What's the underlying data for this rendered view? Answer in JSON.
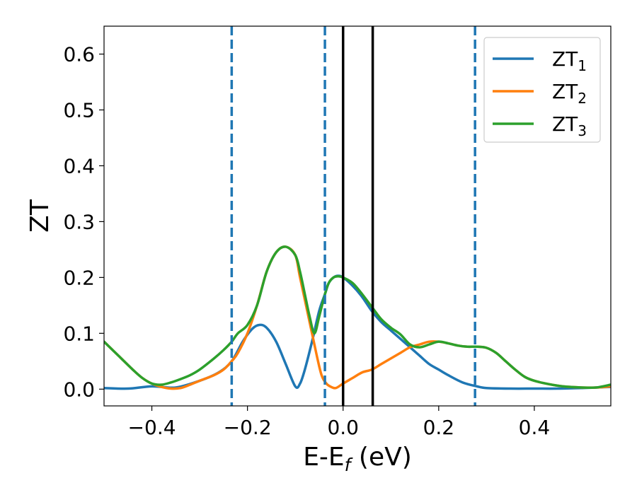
{
  "chart_data": {
    "type": "line",
    "xlabel": "E-E",
    "xlabel_sub": "f",
    "xlabel_unit": " (eV)",
    "ylabel": "ZT",
    "xlim": [
      -0.5,
      0.56
    ],
    "ylim": [
      -0.03,
      0.65
    ],
    "xticks": [
      -0.4,
      -0.2,
      0.0,
      0.2,
      0.4
    ],
    "xtick_labels": [
      "−0.4",
      "−0.2",
      "0.0",
      "0.2",
      "0.4"
    ],
    "yticks": [
      0.0,
      0.1,
      0.2,
      0.3,
      0.4,
      0.5,
      0.6
    ],
    "ytick_labels": [
      "0.0",
      "0.1",
      "0.2",
      "0.3",
      "0.4",
      "0.5",
      "0.6"
    ],
    "grid": false,
    "legend_position": "top-right",
    "vlines_solid": [
      0.0,
      0.062
    ],
    "vlines_solid_color": "#000000",
    "vlines_dashed": [
      -0.233,
      -0.038,
      0.276
    ],
    "vlines_dashed_color": "#1f77b4",
    "series": [
      {
        "name": "ZT",
        "sub": "1",
        "color": "#1f77b4",
        "x": [
          -0.5,
          -0.45,
          -0.4,
          -0.35,
          -0.3,
          -0.26,
          -0.233,
          -0.21,
          -0.19,
          -0.175,
          -0.16,
          -0.14,
          -0.12,
          -0.1,
          -0.09,
          -0.08,
          -0.065,
          -0.05,
          -0.038,
          -0.03,
          -0.02,
          -0.01,
          0.0,
          0.02,
          0.04,
          0.06,
          0.08,
          0.1,
          0.12,
          0.14,
          0.16,
          0.18,
          0.2,
          0.22,
          0.25,
          0.28,
          0.3,
          0.35,
          0.4,
          0.45,
          0.5,
          0.53,
          0.56
        ],
        "y": [
          0.002,
          0.001,
          0.005,
          0.003,
          0.015,
          0.03,
          0.05,
          0.085,
          0.108,
          0.115,
          0.11,
          0.085,
          0.045,
          0.005,
          0.01,
          0.035,
          0.085,
          0.14,
          0.17,
          0.19,
          0.2,
          0.203,
          0.2,
          0.185,
          0.165,
          0.14,
          0.12,
          0.105,
          0.09,
          0.075,
          0.06,
          0.045,
          0.035,
          0.025,
          0.012,
          0.005,
          0.002,
          0.001,
          0.001,
          0.001,
          0.002,
          0.003,
          0.004
        ]
      },
      {
        "name": "ZT",
        "sub": "2",
        "color": "#ff7f0e",
        "x": [
          -0.5,
          -0.47,
          -0.44,
          -0.42,
          -0.4,
          -0.38,
          -0.36,
          -0.34,
          -0.32,
          -0.3,
          -0.27,
          -0.25,
          -0.233,
          -0.22,
          -0.2,
          -0.18,
          -0.16,
          -0.14,
          -0.12,
          -0.1,
          -0.09,
          -0.07,
          -0.055,
          -0.045,
          -0.035,
          -0.025,
          -0.015,
          0.0,
          0.02,
          0.04,
          0.06,
          0.08,
          0.1,
          0.12,
          0.14,
          0.16,
          0.18,
          0.2,
          0.22,
          0.24,
          0.26,
          0.28,
          0.3,
          0.32,
          0.34,
          0.36,
          0.38,
          0.4,
          0.43,
          0.46,
          0.5,
          0.53,
          0.56
        ],
        "y": [
          0.085,
          0.06,
          0.035,
          0.02,
          0.01,
          0.004,
          0.001,
          0.002,
          0.008,
          0.015,
          0.025,
          0.035,
          0.05,
          0.065,
          0.1,
          0.15,
          0.21,
          0.245,
          0.255,
          0.24,
          0.2,
          0.12,
          0.06,
          0.025,
          0.01,
          0.004,
          0.002,
          0.01,
          0.02,
          0.03,
          0.035,
          0.045,
          0.055,
          0.065,
          0.075,
          0.08,
          0.085,
          0.085,
          0.082,
          0.078,
          0.076,
          0.076,
          0.074,
          0.065,
          0.05,
          0.035,
          0.022,
          0.015,
          0.009,
          0.005,
          0.003,
          0.003,
          0.005
        ]
      },
      {
        "name": "ZT",
        "sub": "3",
        "color": "#2ca02c",
        "x": [
          -0.5,
          -0.47,
          -0.44,
          -0.42,
          -0.4,
          -0.38,
          -0.36,
          -0.34,
          -0.32,
          -0.3,
          -0.27,
          -0.25,
          -0.233,
          -0.22,
          -0.2,
          -0.18,
          -0.16,
          -0.14,
          -0.12,
          -0.1,
          -0.09,
          -0.08,
          -0.07,
          -0.06,
          -0.05,
          -0.038,
          -0.03,
          -0.02,
          -0.01,
          0.0,
          0.02,
          0.04,
          0.062,
          0.08,
          0.1,
          0.12,
          0.14,
          0.16,
          0.18,
          0.2,
          0.22,
          0.24,
          0.26,
          0.28,
          0.3,
          0.32,
          0.34,
          0.36,
          0.38,
          0.4,
          0.43,
          0.46,
          0.5,
          0.53,
          0.56
        ],
        "y": [
          0.085,
          0.06,
          0.035,
          0.02,
          0.01,
          0.008,
          0.012,
          0.018,
          0.025,
          0.035,
          0.055,
          0.07,
          0.085,
          0.1,
          0.115,
          0.15,
          0.21,
          0.245,
          0.255,
          0.24,
          0.21,
          0.17,
          0.13,
          0.1,
          0.13,
          0.17,
          0.19,
          0.2,
          0.202,
          0.2,
          0.19,
          0.17,
          0.145,
          0.125,
          0.11,
          0.098,
          0.08,
          0.075,
          0.08,
          0.085,
          0.082,
          0.078,
          0.076,
          0.076,
          0.074,
          0.065,
          0.05,
          0.035,
          0.022,
          0.015,
          0.009,
          0.005,
          0.003,
          0.003,
          0.008
        ]
      }
    ]
  }
}
